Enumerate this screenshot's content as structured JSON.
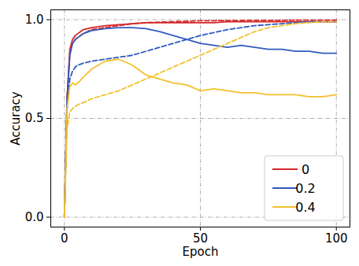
{
  "chart_data": {
    "type": "line",
    "x_label": "Epoch",
    "y_label": "Accuracy",
    "xlim": [
      -5,
      105
    ],
    "ylim": [
      -0.05,
      1.05
    ],
    "xticks": [
      0,
      50,
      100
    ],
    "yticks": [
      {
        "value": 0,
        "label": "0.0"
      },
      {
        "value": 0.5,
        "label": "0.5"
      },
      {
        "value": 1,
        "label": "1.0"
      }
    ],
    "grid": true,
    "legend": "lower right",
    "x": [
      0,
      1,
      2,
      3,
      4,
      5,
      7,
      10,
      15,
      20,
      25,
      30,
      35,
      40,
      45,
      50,
      55,
      60,
      65,
      70,
      75,
      80,
      85,
      90,
      95,
      100
    ],
    "series": [
      {
        "name": "0",
        "color": "#d62728",
        "line_style": "solid",
        "values": [
          0,
          0.6,
          0.85,
          0.9,
          0.92,
          0.93,
          0.95,
          0.96,
          0.97,
          0.975,
          0.98,
          0.985,
          0.985,
          0.985,
          0.985,
          0.985,
          0.985,
          0.99,
          0.99,
          0.99,
          0.99,
          0.99,
          0.99,
          0.99,
          0.99,
          0.99
        ]
      },
      {
        "name": "0",
        "color": "#d62728",
        "line_style": "dashed",
        "values": [
          0,
          0.6,
          0.83,
          0.88,
          0.9,
          0.91,
          0.93,
          0.95,
          0.96,
          0.97,
          0.98,
          0.985,
          0.988,
          0.99,
          0.992,
          0.995,
          0.995,
          0.996,
          0.996,
          0.997,
          0.997,
          0.997,
          0.998,
          0.998,
          0.998,
          0.998
        ]
      },
      {
        "name": "0.2",
        "color": "#2f5bbf",
        "line_style": "solid",
        "values": [
          0,
          0.6,
          0.82,
          0.88,
          0.9,
          0.91,
          0.93,
          0.945,
          0.955,
          0.96,
          0.96,
          0.955,
          0.94,
          0.92,
          0.9,
          0.88,
          0.87,
          0.86,
          0.87,
          0.86,
          0.85,
          0.85,
          0.84,
          0.84,
          0.83,
          0.83
        ]
      },
      {
        "name": "0.2",
        "color": "#2f5bbf",
        "line_style": "dashed",
        "values": [
          0,
          0.55,
          0.7,
          0.74,
          0.76,
          0.77,
          0.78,
          0.79,
          0.8,
          0.81,
          0.82,
          0.84,
          0.86,
          0.88,
          0.9,
          0.92,
          0.935,
          0.95,
          0.96,
          0.97,
          0.975,
          0.98,
          0.985,
          0.99,
          0.99,
          0.99
        ]
      },
      {
        "name": "0.4",
        "color": "#f2c12e",
        "line_style": "solid",
        "values": [
          0,
          0.55,
          0.66,
          0.68,
          0.67,
          0.68,
          0.71,
          0.75,
          0.79,
          0.8,
          0.77,
          0.72,
          0.7,
          0.68,
          0.67,
          0.64,
          0.65,
          0.64,
          0.63,
          0.63,
          0.62,
          0.62,
          0.62,
          0.61,
          0.61,
          0.62
        ]
      },
      {
        "name": "0.4",
        "color": "#f2c12e",
        "line_style": "dashed",
        "values": [
          0,
          0.45,
          0.53,
          0.55,
          0.56,
          0.57,
          0.58,
          0.6,
          0.62,
          0.64,
          0.67,
          0.7,
          0.73,
          0.76,
          0.79,
          0.82,
          0.85,
          0.88,
          0.91,
          0.94,
          0.96,
          0.97,
          0.98,
          0.985,
          0.99,
          0.99
        ]
      }
    ]
  }
}
